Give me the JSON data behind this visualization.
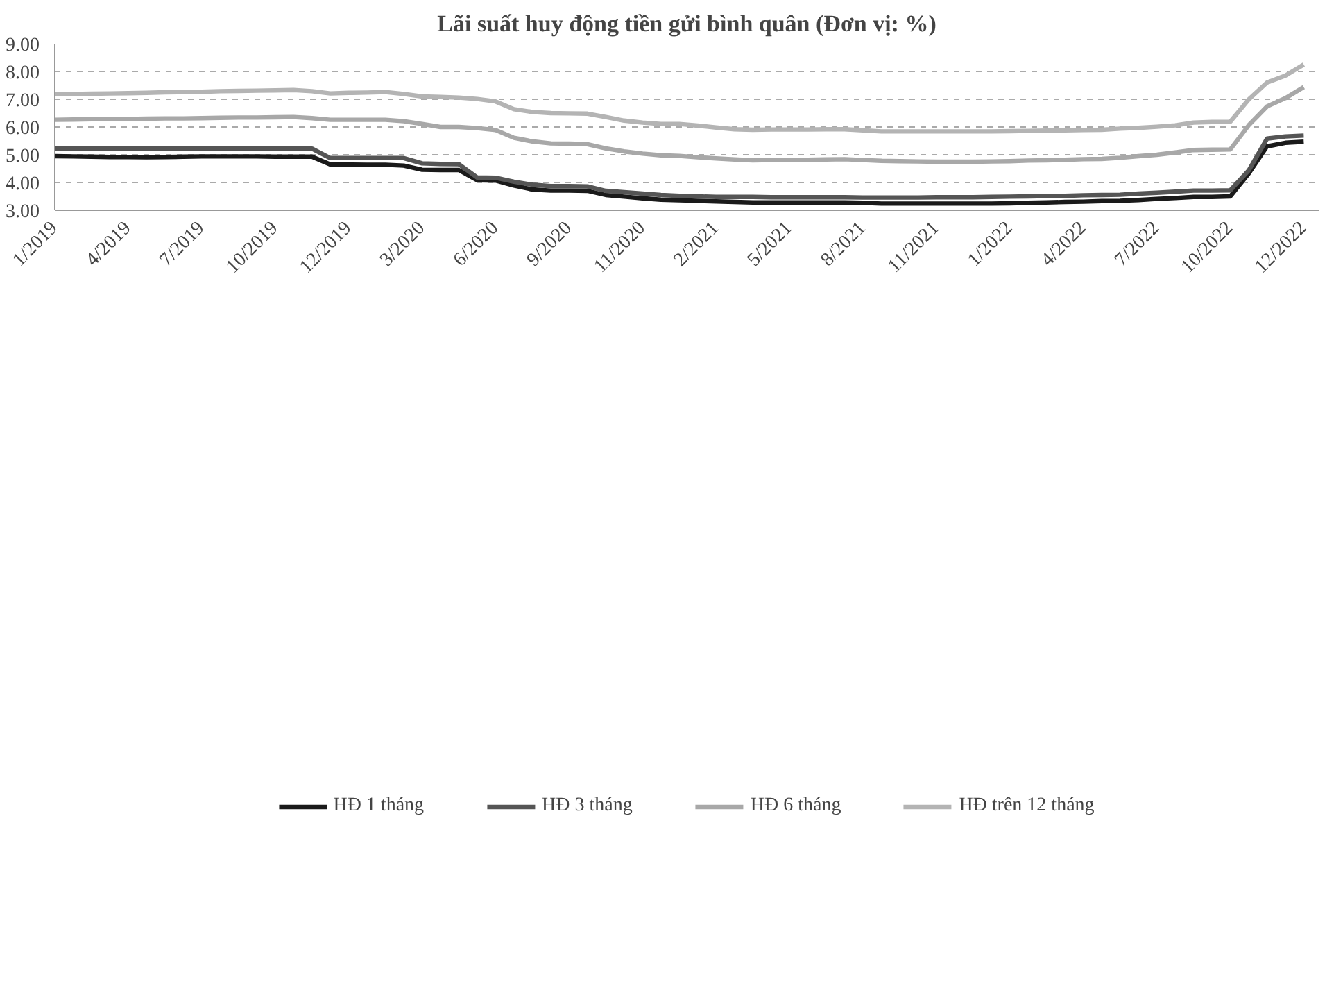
{
  "chart_data": {
    "type": "line",
    "title": "Lãi suất huy động tiền gửi bình quân (Đơn vị: %)",
    "categories": [
      "1/2019",
      null,
      null,
      null,
      "4/2019",
      null,
      null,
      null,
      "7/2019",
      null,
      null,
      null,
      "10/2019",
      null,
      null,
      null,
      "12/2019",
      null,
      null,
      null,
      "3/2020",
      null,
      null,
      null,
      "6/2020",
      null,
      null,
      null,
      "9/2020",
      null,
      null,
      null,
      "11/2020",
      null,
      null,
      null,
      "2/2021",
      null,
      null,
      null,
      "5/2021",
      null,
      null,
      null,
      "8/2021",
      null,
      null,
      null,
      "11/2021",
      null,
      null,
      null,
      "1/2022",
      null,
      null,
      null,
      "4/2022",
      null,
      null,
      null,
      "7/2022",
      null,
      null,
      null,
      "10/2022",
      null,
      null,
      null,
      "12/2022"
    ],
    "ylim": [
      3,
      9
    ],
    "yticks": [
      {
        "value": 3,
        "label": "3.00"
      },
      {
        "value": 4,
        "label": "4.00"
      },
      {
        "value": 5,
        "label": "5.00"
      },
      {
        "value": 6,
        "label": "6.00"
      },
      {
        "value": 7,
        "label": "7.00"
      },
      {
        "value": 8,
        "label": "8.00"
      },
      {
        "value": 9,
        "label": "9.00"
      }
    ],
    "grid": "y",
    "legend": "bottom",
    "line_style": "solid",
    "marker": "none",
    "series": [
      {
        "name": "HĐ 1 tháng",
        "color": "#1a1a1a",
        "values": [
          4.95,
          4.94,
          4.93,
          4.92,
          4.92,
          4.91,
          4.92,
          4.93,
          4.94,
          4.94,
          4.94,
          4.94,
          4.93,
          4.93,
          4.93,
          4.65,
          4.65,
          4.64,
          4.64,
          4.61,
          4.46,
          4.45,
          4.45,
          4.08,
          4.07,
          3.89,
          3.75,
          3.71,
          3.71,
          3.7,
          3.55,
          3.49,
          3.43,
          3.38,
          3.36,
          3.34,
          3.32,
          3.3,
          3.28,
          3.28,
          3.28,
          3.28,
          3.28,
          3.28,
          3.27,
          3.24,
          3.24,
          3.24,
          3.24,
          3.24,
          3.24,
          3.24,
          3.25,
          3.27,
          3.28,
          3.3,
          3.31,
          3.33,
          3.34,
          3.37,
          3.41,
          3.44,
          3.48,
          3.48,
          3.5,
          4.32,
          5.3,
          5.43,
          5.47
        ]
      },
      {
        "name": "HĐ 3 tháng",
        "color": "#555555",
        "values": [
          5.22,
          5.22,
          5.22,
          5.22,
          5.22,
          5.22,
          5.22,
          5.22,
          5.22,
          5.22,
          5.22,
          5.22,
          5.22,
          5.22,
          5.22,
          4.88,
          4.88,
          4.88,
          4.88,
          4.88,
          4.69,
          4.67,
          4.66,
          4.18,
          4.17,
          4.03,
          3.92,
          3.87,
          3.87,
          3.86,
          3.7,
          3.65,
          3.6,
          3.55,
          3.52,
          3.5,
          3.48,
          3.48,
          3.48,
          3.47,
          3.47,
          3.47,
          3.47,
          3.47,
          3.46,
          3.46,
          3.46,
          3.46,
          3.47,
          3.47,
          3.47,
          3.48,
          3.49,
          3.5,
          3.51,
          3.52,
          3.54,
          3.55,
          3.56,
          3.6,
          3.63,
          3.67,
          3.71,
          3.71,
          3.72,
          4.43,
          5.58,
          5.66,
          5.69
        ]
      },
      {
        "name": "HĐ 6 tháng",
        "color": "#a8a8a8",
        "values": [
          6.26,
          6.27,
          6.28,
          6.28,
          6.29,
          6.3,
          6.31,
          6.31,
          6.32,
          6.33,
          6.34,
          6.34,
          6.35,
          6.36,
          6.32,
          6.26,
          6.26,
          6.26,
          6.26,
          6.21,
          6.11,
          6.0,
          6.0,
          5.96,
          5.89,
          5.61,
          5.48,
          5.41,
          5.4,
          5.38,
          5.23,
          5.12,
          5.04,
          4.98,
          4.96,
          4.91,
          4.87,
          4.83,
          4.8,
          4.81,
          4.82,
          4.82,
          4.83,
          4.84,
          4.81,
          4.78,
          4.77,
          4.76,
          4.75,
          4.75,
          4.75,
          4.76,
          4.77,
          4.79,
          4.8,
          4.82,
          4.84,
          4.85,
          4.89,
          4.95,
          5.0,
          5.08,
          5.17,
          5.18,
          5.19,
          6.06,
          6.74,
          7.04,
          7.44
        ]
      },
      {
        "name": "HĐ trên 12 tháng",
        "color": "#b4b4b4",
        "values": [
          7.18,
          7.19,
          7.2,
          7.21,
          7.22,
          7.23,
          7.25,
          7.26,
          7.27,
          7.29,
          7.3,
          7.31,
          7.32,
          7.33,
          7.29,
          7.21,
          7.23,
          7.24,
          7.26,
          7.19,
          7.1,
          7.08,
          7.06,
          7.01,
          6.92,
          6.64,
          6.54,
          6.5,
          6.49,
          6.48,
          6.36,
          6.23,
          6.16,
          6.11,
          6.11,
          6.05,
          5.98,
          5.92,
          5.9,
          5.91,
          5.91,
          5.91,
          5.92,
          5.92,
          5.88,
          5.84,
          5.84,
          5.84,
          5.84,
          5.84,
          5.84,
          5.84,
          5.85,
          5.86,
          5.87,
          5.88,
          5.89,
          5.9,
          5.94,
          5.97,
          6.01,
          6.06,
          6.16,
          6.18,
          6.19,
          6.99,
          7.6,
          7.85,
          8.25
        ]
      }
    ]
  }
}
